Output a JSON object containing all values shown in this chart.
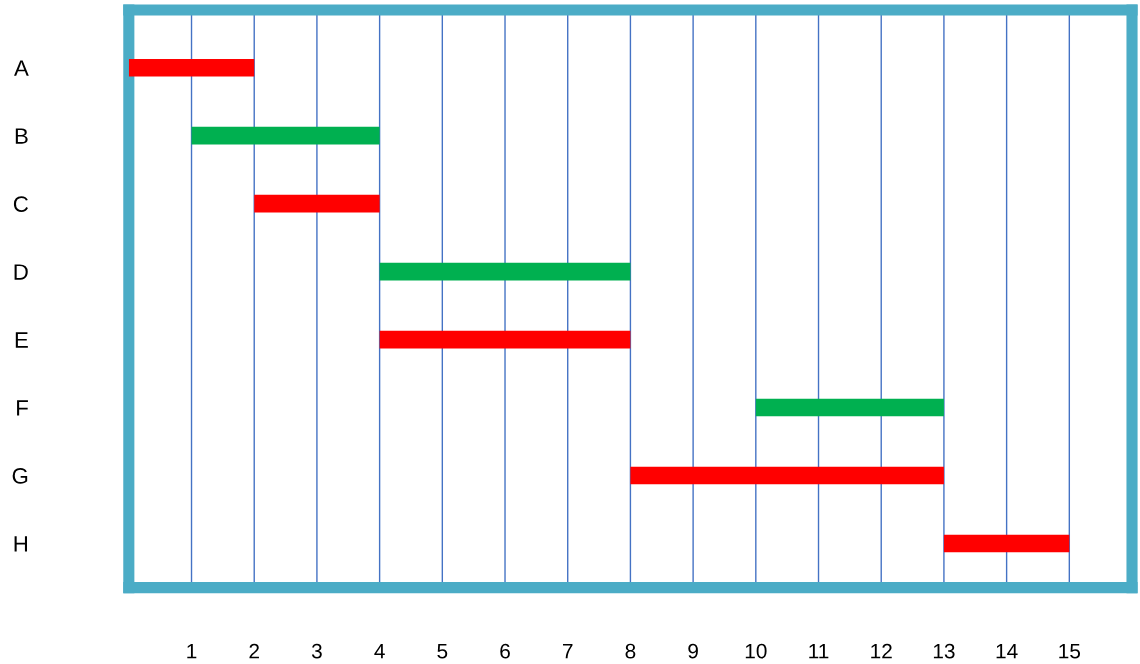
{
  "chart_data": {
    "type": "bar",
    "orientation": "horizontal",
    "categories": [
      "A",
      "B",
      "C",
      "D",
      "E",
      "F",
      "G",
      "H"
    ],
    "base": [
      0,
      1,
      2,
      4,
      4,
      10,
      8,
      13
    ],
    "values": [
      2,
      3,
      2,
      4,
      4,
      3,
      5,
      2
    ],
    "colors": [
      "#ff0000",
      "#00b050",
      "#ff0000",
      "#00b050",
      "#ff0000",
      "#00b050",
      "#ff0000",
      "#ff0000"
    ],
    "xlim": [
      0,
      16
    ],
    "xticks": [
      1,
      2,
      3,
      4,
      5,
      6,
      7,
      8,
      9,
      10,
      11,
      12,
      13,
      14,
      15
    ],
    "grid": "x"
  }
}
